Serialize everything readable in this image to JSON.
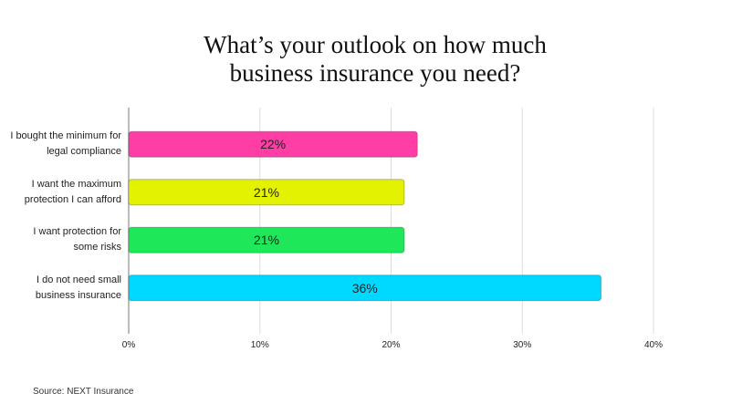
{
  "chart_data": {
    "type": "hbar",
    "title": "What’s your outlook on how much business insurance you need?",
    "categories": [
      "I bought the minimum for legal compliance",
      "I want the maximum protection I can afford",
      "I want protection for some risks",
      "I do not need small business insurance"
    ],
    "values": [
      22,
      21,
      21,
      36
    ],
    "value_labels": [
      "22%",
      "21%",
      "21%",
      "36%"
    ],
    "colors": [
      "#ff3ea5",
      "#e2f200",
      "#1ee85a",
      "#00d9ff"
    ],
    "xlim": [
      0,
      40
    ],
    "xticks": [
      {
        "value": 0,
        "label": "0%"
      },
      {
        "value": 10,
        "label": "10%"
      },
      {
        "value": 20,
        "label": "20%"
      },
      {
        "value": 30,
        "label": "30%"
      },
      {
        "value": 40,
        "label": "40%"
      }
    ],
    "grid": true,
    "source": "Source: NEXT Insurance"
  }
}
